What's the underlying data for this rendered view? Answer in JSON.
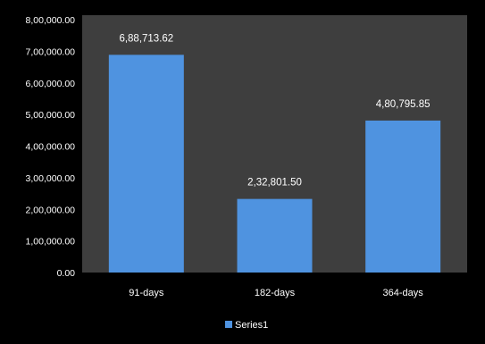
{
  "chart_data": {
    "type": "bar",
    "categories": [
      "91-days",
      "182-days",
      "364-days"
    ],
    "series": [
      {
        "name": "Series1",
        "values": [
          688713.62,
          232801.5,
          480795.85
        ],
        "labels": [
          "6,88,713.62",
          "2,32,801.50",
          "4,80,795.85"
        ],
        "color": "#4f93e0"
      }
    ],
    "ylim": [
      0,
      800000
    ],
    "yticks": [
      {
        "value": 0,
        "label": "0.00"
      },
      {
        "value": 100000,
        "label": "1,00,000.00"
      },
      {
        "value": 200000,
        "label": "2,00,000.00"
      },
      {
        "value": 300000,
        "label": "3,00,000.00"
      },
      {
        "value": 400000,
        "label": "4,00,000.00"
      },
      {
        "value": 500000,
        "label": "5,00,000.00"
      },
      {
        "value": 600000,
        "label": "6,00,000.00"
      },
      {
        "value": 700000,
        "label": "7,00,000.00"
      },
      {
        "value": 800000,
        "label": "8,00,000.00"
      }
    ],
    "legend": "bottom",
    "grid": false,
    "plot_background": "#3e3e3e",
    "chart_background": "#000000"
  }
}
